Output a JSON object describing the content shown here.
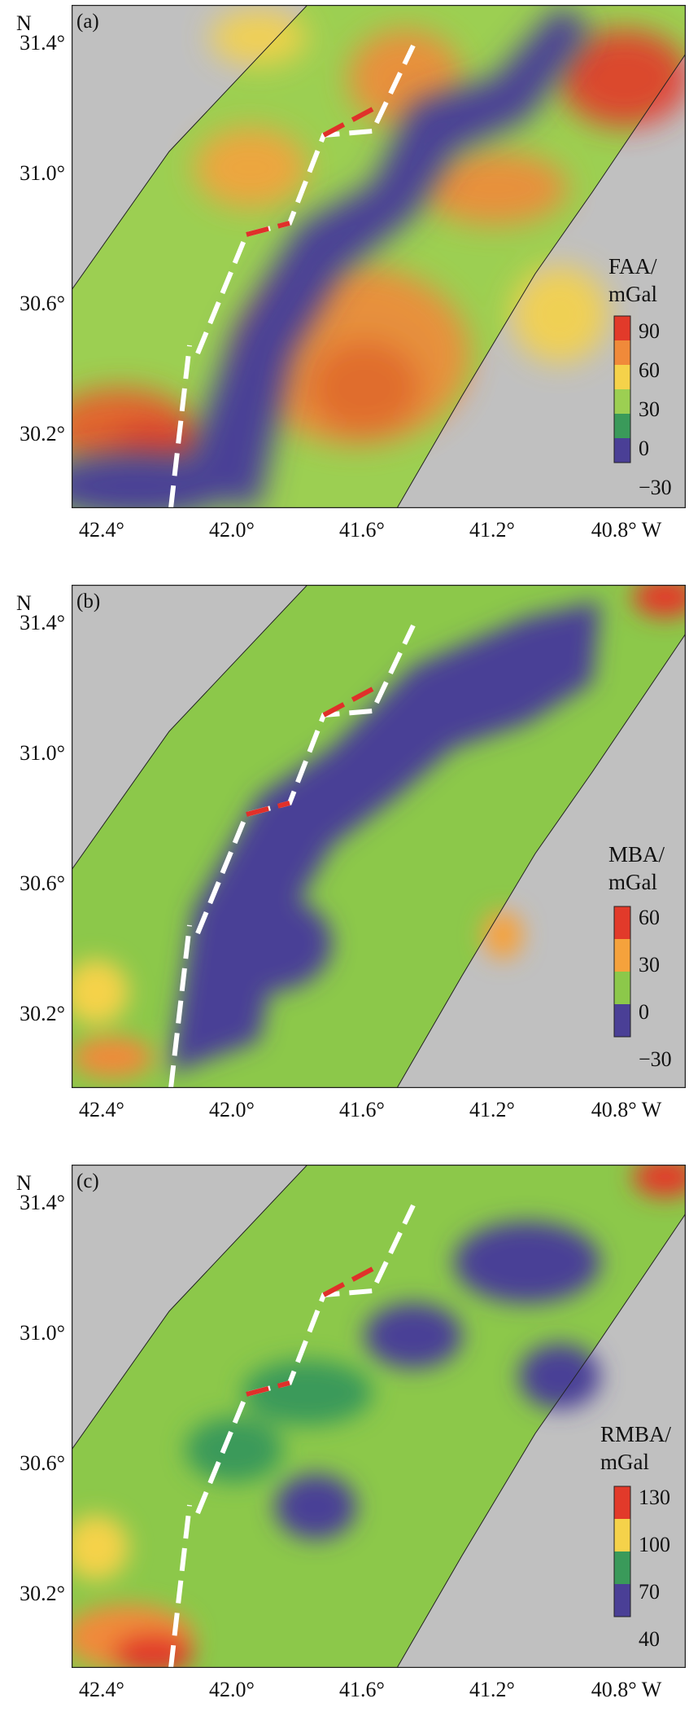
{
  "figure": {
    "north_label": "N",
    "lat_ticks": [
      "31.4°",
      "31.0°",
      "30.6°",
      "30.2°"
    ],
    "lon_ticks": [
      "42.4°",
      "42.0°",
      "41.6°",
      "41.2°",
      "40.8° W"
    ]
  },
  "panels": [
    {
      "tag": "(a)",
      "colorbar": {
        "title_line1": "FAA/",
        "title_line2": "mGal",
        "ticks": [
          "90",
          "60",
          "30",
          "0",
          "−30"
        ]
      }
    },
    {
      "tag": "(b)",
      "colorbar": {
        "title_line1": "MBA/",
        "title_line2": "mGal",
        "ticks": [
          "60",
          "30",
          "0",
          "−30"
        ]
      }
    },
    {
      "tag": "(c)",
      "colorbar": {
        "title_line1": "RMBA/",
        "title_line2": "mGal",
        "ticks": [
          "130",
          "100",
          "70",
          "40"
        ]
      }
    }
  ],
  "colors": {
    "land_gray": "#c0c0c0",
    "low_purple": "#4a3f96",
    "mid_green": "#8cc84a",
    "high_red": "#e23a2a",
    "ridge_white": "#ffffff",
    "transform_red": "#e0302a"
  }
}
